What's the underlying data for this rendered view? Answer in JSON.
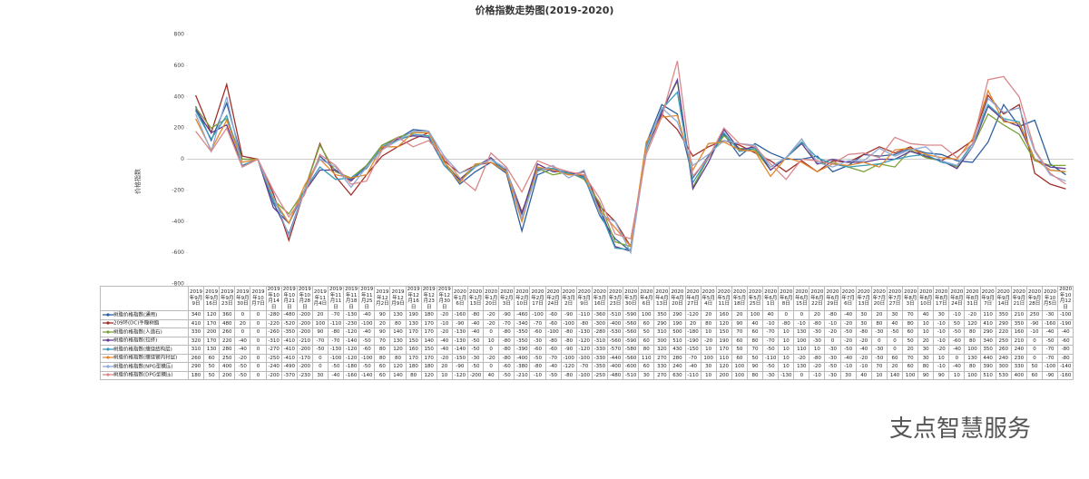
{
  "chart_data": {
    "type": "line",
    "title": "价格指数走势图(2019-2020)",
    "y_label": "价格指数",
    "watermark": "支点智慧服务",
    "ylim": [
      -800,
      800
    ],
    "yticks": [
      -800,
      -600,
      -400,
      -200,
      0,
      200,
      400,
      600,
      800
    ],
    "grid": false,
    "categories": [
      "2019年9月9日",
      "2019年9月16日",
      "2019年9月23日",
      "2019年9月30日",
      "2019年10月7日",
      "2019年10月14日",
      "2019年10月21日",
      "2019年10月28日",
      "2019年11月4日",
      "2019年11月11日",
      "2019年11月18日",
      "2019年11月25日",
      "2019年12月2日",
      "2019年12月9日",
      "2019年12月16日",
      "2019年12月23日",
      "2019年12月30日",
      "2020年1月6日",
      "2020年1月13日",
      "2020年1月20日",
      "2020年2月3日",
      "2020年2月10日",
      "2020年2月17日",
      "2020年2月24日",
      "2020年3月2日",
      "2020年3月9日",
      "2020年3月16日",
      "2020年3月23日",
      "2020年3月30日",
      "2020年4月6日",
      "2020年4月13日",
      "2020年4月20日",
      "2020年4月27日",
      "2020年5月4日",
      "2020年5月11日",
      "2020年5月18日",
      "2020年5月25日",
      "2020年6月1日",
      "2020年6月8日",
      "2020年6月15日",
      "2020年6月22日",
      "2020年6月29日",
      "2020年7月6日",
      "2020年7月13日",
      "2020年7月20日",
      "2020年7月27日",
      "2020年8月3日",
      "2020年8月10日",
      "2020年8月17日",
      "2020年8月24日",
      "2020年8月31日",
      "2020年9月7日",
      "2020年9月14日",
      "2020年9月21日",
      "2020年9月28日",
      "2020年10月5日",
      "2020年10月12日"
    ],
    "series": [
      {
        "name": "树脂价格指数(通用)",
        "color": "#2e5f9e",
        "values": [
          340,
          120,
          360,
          0,
          0,
          -280,
          -480,
          -200,
          20,
          -70,
          -130,
          -40,
          90,
          130,
          190,
          180,
          -20,
          -160,
          -80,
          -20,
          -90,
          -460,
          -100,
          -60,
          -90,
          -110,
          -360,
          -510,
          -590,
          100,
          350,
          290,
          -120,
          20,
          160,
          20,
          100,
          40,
          0,
          0,
          20,
          -80,
          -40,
          30,
          20,
          30,
          70,
          40,
          30,
          -10,
          -20,
          110,
          350,
          210,
          250,
          -30,
          -100
        ]
      },
      {
        "name": "209环(DC)手糊树脂",
        "color": "#a0302c",
        "values": [
          410,
          170,
          480,
          20,
          0,
          -220,
          -520,
          -200,
          100,
          -110,
          -230,
          -100,
          20,
          80,
          130,
          170,
          -10,
          -90,
          -40,
          -20,
          -70,
          -340,
          -70,
          -60,
          -100,
          -80,
          -300,
          -400,
          -560,
          60,
          290,
          190,
          20,
          80,
          120,
          90,
          40,
          -10,
          -80,
          -10,
          -80,
          -10,
          -20,
          30,
          80,
          40,
          80,
          10,
          -10,
          50,
          120,
          410,
          290,
          350,
          -90,
          -160,
          -190
        ]
      },
      {
        "name": "树脂价格指数(人造石)",
        "color": "#7aa33a",
        "values": [
          330,
          200,
          260,
          0,
          0,
          -260,
          -350,
          -200,
          90,
          -80,
          -120,
          -40,
          90,
          140,
          170,
          170,
          -20,
          -130,
          -40,
          0,
          -80,
          -350,
          -60,
          -100,
          -80,
          -130,
          -280,
          -530,
          -560,
          50,
          310,
          500,
          -180,
          10,
          150,
          70,
          60,
          -70,
          10,
          130,
          -30,
          -20,
          -50,
          -80,
          -30,
          -50,
          60,
          10,
          -10,
          -50,
          80,
          290,
          220,
          160,
          -10,
          -40,
          -40
        ]
      },
      {
        "name": "树脂价格指数(拉挤)",
        "color": "#5f3c8f",
        "values": [
          320,
          170,
          220,
          -40,
          0,
          -310,
          -410,
          -210,
          -70,
          -70,
          -140,
          -50,
          70,
          130,
          150,
          140,
          -40,
          -130,
          -50,
          10,
          -80,
          -350,
          -30,
          -80,
          -80,
          -120,
          -310,
          -560,
          -590,
          60,
          300,
          510,
          -190,
          -20,
          190,
          60,
          80,
          -70,
          10,
          100,
          -30,
          0,
          -20,
          -20,
          0,
          0,
          50,
          20,
          -10,
          -60,
          80,
          340,
          250,
          210,
          0,
          -50,
          -60
        ]
      },
      {
        "name": "树脂价格指数(缠绕结构层)",
        "color": "#3a9bb8",
        "values": [
          310,
          130,
          280,
          -40,
          0,
          -270,
          -410,
          -200,
          -50,
          -130,
          -120,
          -60,
          80,
          120,
          160,
          150,
          -40,
          -140,
          -50,
          0,
          -80,
          -390,
          -60,
          -60,
          -90,
          -120,
          -330,
          -570,
          -580,
          80,
          320,
          430,
          -150,
          10,
          170,
          50,
          70,
          -50,
          10,
          110,
          10,
          -30,
          -50,
          -40,
          -30,
          0,
          20,
          30,
          -20,
          -40,
          100,
          350,
          260,
          240,
          0,
          -70,
          -80
        ]
      },
      {
        "name": "树脂价格指数(缠绕管内衬层)",
        "color": "#e08a2e",
        "values": [
          260,
          60,
          250,
          -20,
          0,
          -250,
          -410,
          -170,
          0,
          -100,
          -120,
          -100,
          80,
          80,
          170,
          170,
          -20,
          -150,
          -30,
          -20,
          -80,
          -400,
          -50,
          -70,
          -100,
          -100,
          -330,
          -440,
          -560,
          110,
          270,
          280,
          -70,
          100,
          110,
          60,
          50,
          -110,
          10,
          -20,
          -80,
          -30,
          -40,
          -20,
          -50,
          60,
          70,
          30,
          10,
          0,
          130,
          440,
          240,
          230,
          0,
          -70,
          -80
        ]
      },
      {
        "name": "树脂价格指数(NPG型模压)",
        "color": "#8faad6",
        "values": [
          290,
          50,
          400,
          -50,
          0,
          -240,
          -490,
          -200,
          0,
          -50,
          -180,
          -50,
          60,
          120,
          180,
          180,
          20,
          -90,
          -50,
          0,
          -60,
          -380,
          -80,
          -40,
          -120,
          -70,
          -350,
          -400,
          -600,
          60,
          330,
          240,
          -40,
          30,
          120,
          100,
          90,
          -50,
          10,
          130,
          -20,
          -50,
          -10,
          -10,
          70,
          20,
          60,
          80,
          -10,
          -40,
          80,
          390,
          300,
          330,
          50,
          -100,
          -140
        ]
      },
      {
        "name": "树脂价格指数(DPG型模压)",
        "color": "#d9888a",
        "values": [
          180,
          50,
          200,
          -50,
          0,
          -200,
          -370,
          -230,
          30,
          -40,
          -160,
          -140,
          60,
          140,
          80,
          120,
          10,
          -120,
          -200,
          40,
          -50,
          -210,
          -10,
          -50,
          -80,
          -100,
          -250,
          -480,
          -510,
          30,
          270,
          630,
          -110,
          10,
          200,
          100,
          80,
          -30,
          -130,
          0,
          -10,
          -30,
          30,
          40,
          10,
          140,
          100,
          90,
          90,
          10,
          100,
          510,
          530,
          400,
          60,
          -90,
          -160
        ]
      }
    ]
  }
}
